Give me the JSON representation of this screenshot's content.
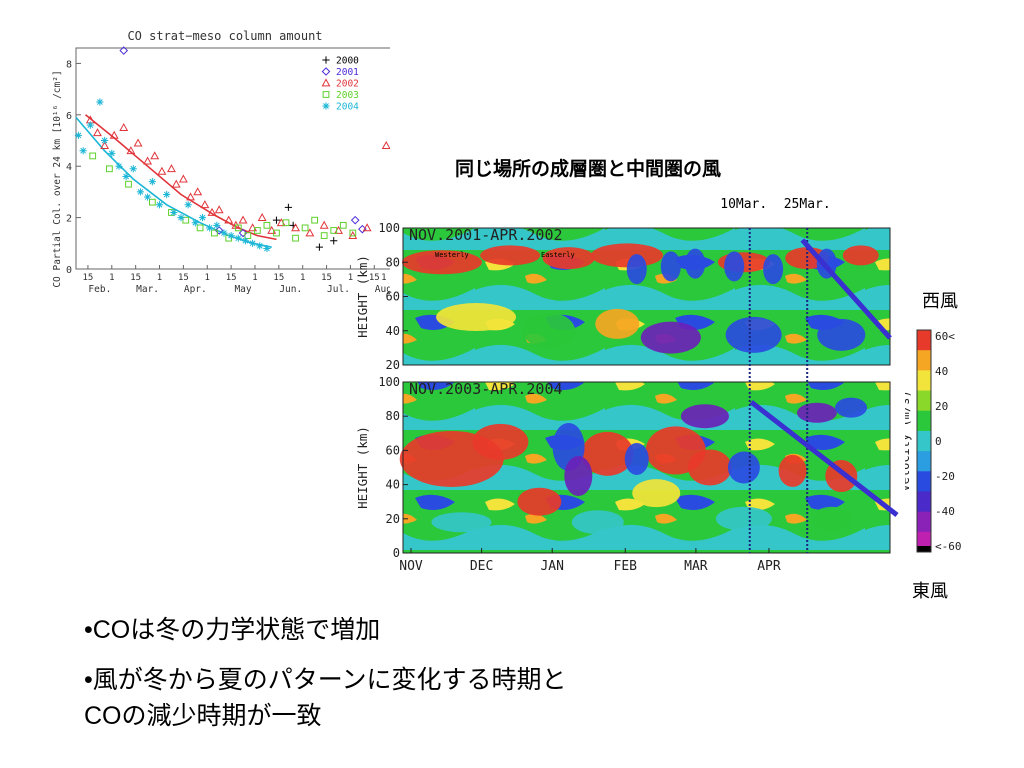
{
  "slide": {
    "heading": "同じ場所の成層圏と中間圏の風",
    "bullets": [
      "•COは冬の力学状態で増加",
      "•風が冬から夏のパターンに変化する時期と",
      "COの減少時期が一致"
    ],
    "westerly_label": "西風",
    "easterly_label": "東風"
  },
  "chart_data": [
    {
      "type": "scatter",
      "title": "CO strat−meso column amount",
      "ylabel": "CO Partial Col. over 24 km [10¹⁶ /cm²]",
      "ylim": [
        0,
        8.6
      ],
      "yticks": [
        "0",
        "2",
        "4",
        "6",
        "8"
      ],
      "xlim": [
        0,
        6.6
      ],
      "x_month_labels": [
        "Feb.",
        "Mar.",
        "Apr.",
        "May",
        "Jun.",
        "Jul.",
        "Aug."
      ],
      "x_day_labels": [
        "15",
        "1",
        "15",
        "1",
        "15",
        "1",
        "15",
        "1",
        "15",
        "1",
        "15",
        "1",
        "15",
        "1"
      ],
      "grid": false,
      "legend_position": "top-right",
      "series": [
        {
          "name": "2000",
          "marker": "+",
          "color": "#000000",
          "x": [
            4.45,
            4.55,
            4.2,
            5.1,
            5.4
          ],
          "y": [
            2.4,
            1.7,
            1.9,
            0.85,
            1.1
          ]
        },
        {
          "name": "2001",
          "marker": "diamond",
          "color": "#4b2bd8",
          "x": [
            1.0,
            5.85,
            6.0,
            3.0,
            3.5
          ],
          "y": [
            8.5,
            1.9,
            1.55,
            1.5,
            1.4
          ]
        },
        {
          "name": "2002",
          "marker": "triangle",
          "color": "#e0343a",
          "x": [
            0.3,
            0.45,
            0.6,
            0.8,
            1.0,
            1.15,
            1.3,
            1.5,
            1.65,
            1.8,
            2.0,
            2.1,
            2.25,
            2.4,
            2.55,
            2.7,
            2.85,
            3.0,
            3.2,
            3.35,
            3.5,
            3.7,
            3.9,
            4.1,
            4.3,
            4.6,
            4.9,
            5.2,
            5.5,
            5.8,
            6.1,
            6.5
          ],
          "y": [
            5.8,
            5.3,
            4.8,
            5.2,
            5.5,
            4.6,
            4.9,
            4.2,
            4.4,
            3.8,
            3.9,
            3.3,
            3.5,
            2.8,
            3.0,
            2.5,
            2.2,
            2.3,
            1.9,
            1.7,
            1.9,
            1.6,
            2.0,
            1.5,
            1.8,
            1.6,
            1.4,
            1.7,
            1.5,
            1.3,
            1.6,
            4.8
          ]
        },
        {
          "name": "2003",
          "marker": "square",
          "color": "#5ed02a",
          "x": [
            0.35,
            0.7,
            1.1,
            1.6,
            2.0,
            2.3,
            2.6,
            2.9,
            3.2,
            3.4,
            3.6,
            3.8,
            4.0,
            4.2,
            4.4,
            4.6,
            4.8,
            5.0,
            5.2,
            5.4,
            5.6,
            5.8
          ],
          "y": [
            4.4,
            3.9,
            3.3,
            2.6,
            2.2,
            1.9,
            1.6,
            1.4,
            1.2,
            1.6,
            1.3,
            1.5,
            1.7,
            1.4,
            1.8,
            1.2,
            1.6,
            1.9,
            1.3,
            1.5,
            1.7,
            1.4
          ]
        },
        {
          "name": "2004",
          "marker": "asterisk",
          "color": "#1cb6d6",
          "x": [
            0.05,
            0.15,
            0.3,
            0.5,
            0.6,
            0.75,
            0.9,
            1.05,
            1.2,
            1.35,
            1.5,
            1.6,
            1.75,
            1.9,
            2.05,
            2.2,
            2.35,
            2.5,
            2.65,
            2.8,
            2.95,
            3.1,
            3.25,
            3.4,
            3.55,
            3.7,
            3.85,
            4.0
          ],
          "y": [
            5.2,
            4.6,
            5.6,
            6.5,
            5.0,
            4.5,
            4.0,
            3.6,
            3.9,
            3.0,
            2.8,
            3.4,
            2.5,
            2.9,
            2.2,
            2.0,
            2.5,
            1.8,
            2.0,
            1.6,
            1.7,
            1.4,
            1.3,
            1.2,
            1.1,
            1.0,
            0.9,
            0.8
          ]
        }
      ],
      "fit_lines": [
        {
          "color": "#e0343a",
          "x": [
            0.2,
            0.8,
            1.5,
            2.2,
            2.9,
            3.4,
            3.8,
            4.2
          ],
          "y": [
            6.0,
            5.1,
            4.0,
            2.9,
            2.1,
            1.6,
            1.3,
            1.15
          ]
        },
        {
          "color": "#1cb6d6",
          "x": [
            0.0,
            0.6,
            1.2,
            1.9,
            2.6,
            3.2,
            3.7,
            4.1
          ],
          "y": [
            5.9,
            4.6,
            3.5,
            2.5,
            1.8,
            1.3,
            1.0,
            0.85
          ]
        }
      ],
      "extra_tick_labels": [
        "1"
      ]
    },
    {
      "type": "heatmap",
      "panels": [
        {
          "label": "NOV.2001-APR.2002",
          "annotations": [
            "Westerly",
            "Easterly"
          ]
        },
        {
          "label": "NOV.2003-APR.2004"
        }
      ],
      "ylabel": "HEIGHT (km)",
      "yticks_top": [
        "100",
        "80",
        "60",
        "40",
        "20"
      ],
      "yticks_bottom": [
        "100",
        "80",
        "60",
        "40",
        "20",
        "0"
      ],
      "ylim": [
        0,
        100
      ],
      "x_labels": [
        "NOV",
        "DEC",
        "JAN",
        "FEB",
        "MAR",
        "APR"
      ],
      "markers": [
        "10Mar.",
        "25Mar."
      ],
      "colorbar": {
        "label": "Velocity (m/s)",
        "ticks": [
          "60<",
          "40",
          "20",
          "0",
          "-20",
          "-40",
          "<-60"
        ]
      },
      "colors": [
        "#e83a2a",
        "#f5a623",
        "#f2e43a",
        "#2ac83a",
        "#34c6c8",
        "#2a4be0",
        "#6a22b8",
        "#000000"
      ]
    }
  ]
}
